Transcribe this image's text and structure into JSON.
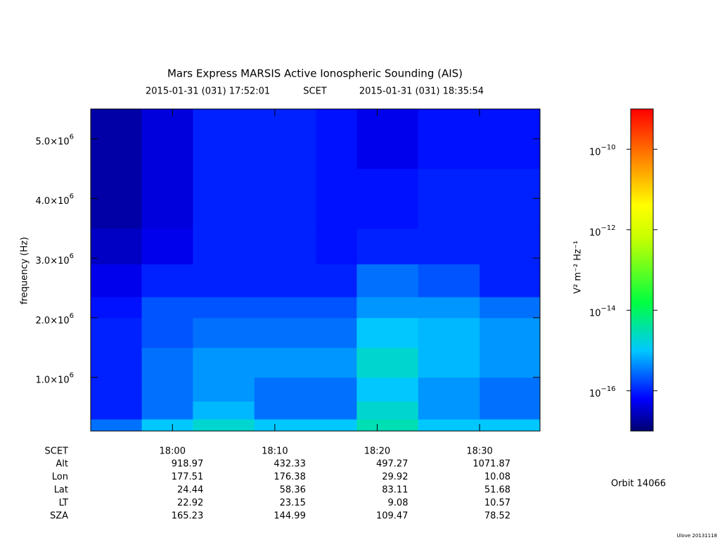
{
  "chart_data": {
    "type": "heatmap",
    "title": "Mars Express MARSIS Active Ionospheric Sounding (AIS)",
    "time_range": [
      "2015-01-31 (031) 17:52:01",
      "2015-01-31 (031) 18:35:54"
    ],
    "time_label": "SCET",
    "y_label": "frequency (Hz)",
    "z_label": "V² m⁻² Hz⁻¹",
    "xlim": [
      "2015-01-31T17:52:01",
      "2015-01-31T18:35:54"
    ],
    "xticks": [
      {
        "value": "2015-01-31T18:00:00",
        "label": "18:00"
      },
      {
        "value": "2015-01-31T18:10:00",
        "label": "18:10"
      },
      {
        "value": "2015-01-31T18:20:00",
        "label": "18:20"
      },
      {
        "value": "2015-01-31T18:30:00",
        "label": "18:30"
      }
    ],
    "ylim": [
      100000,
      5500000
    ],
    "yticks": [
      {
        "value": 1000000,
        "label": "1.0×10",
        "power": "6"
      },
      {
        "value": 2000000,
        "label": "2.0×10",
        "power": "6"
      },
      {
        "value": 3000000,
        "label": "3.0×10",
        "power": "6"
      },
      {
        "value": 4000000,
        "label": "4.0×10",
        "power": "6"
      },
      {
        "value": 5000000,
        "label": "5.0×10",
        "power": "6"
      }
    ],
    "zlim": [
      1e-17,
      1e-09
    ],
    "zscale": "log",
    "zticks": [
      {
        "value": 1e-10,
        "label": "10",
        "power": "−10"
      },
      {
        "value": 1e-12,
        "label": "10",
        "power": "−12"
      },
      {
        "value": 1e-14,
        "label": "10",
        "power": "−14"
      },
      {
        "value": 1e-16,
        "label": "10",
        "power": "−16"
      }
    ],
    "x_bins": [
      "2015-01-31T17:52:01",
      "2015-01-31T17:57:00",
      "2015-01-31T18:02:00",
      "2015-01-31T18:08:00",
      "2015-01-31T18:14:00",
      "2015-01-31T18:18:00",
      "2015-01-31T18:24:00",
      "2015-01-31T18:30:00",
      "2015-01-31T18:35:54"
    ],
    "y_bins": [
      100000,
      300000,
      600000,
      1000000,
      1500000,
      2000000,
      2350000,
      2900000,
      3500000,
      4500000,
      5500000
    ],
    "z": [
      [
        3e-16,
        1e-15,
        2e-15,
        1e-15,
        1e-15,
        3e-15,
        1e-15,
        1e-15
      ],
      [
        1e-16,
        3e-16,
        8e-16,
        3e-16,
        3e-16,
        2e-15,
        5e-16,
        3e-16
      ],
      [
        1e-16,
        3e-16,
        5e-16,
        3e-16,
        3e-16,
        1e-15,
        5e-16,
        3e-16
      ],
      [
        1e-16,
        3e-16,
        5e-16,
        5e-16,
        5e-16,
        2e-15,
        8e-16,
        5e-16
      ],
      [
        1e-16,
        2e-16,
        3e-16,
        3e-16,
        3e-16,
        1e-15,
        8e-16,
        5e-16
      ],
      [
        8e-17,
        2e-16,
        2e-16,
        2e-16,
        2e-16,
        5e-16,
        5e-16,
        3e-16
      ],
      [
        5e-17,
        1e-16,
        1e-16,
        1e-16,
        1e-16,
        3e-16,
        2e-16,
        1e-16
      ],
      [
        3e-17,
        5e-17,
        1e-16,
        1e-16,
        8e-17,
        1e-16,
        1e-16,
        1e-16
      ],
      [
        2e-17,
        4e-17,
        1e-16,
        1e-16,
        8e-17,
        8e-17,
        1e-16,
        1e-16
      ],
      [
        2e-17,
        4e-17,
        1e-16,
        1e-16,
        8e-17,
        5e-17,
        8e-17,
        8e-17
      ]
    ],
    "ephemeris": {
      "header": "SCET",
      "rows": [
        {
          "name": "Alt",
          "values": [
            918.97,
            432.33,
            497.27,
            1071.87
          ]
        },
        {
          "name": "Lon",
          "values": [
            177.51,
            176.38,
            29.92,
            10.08
          ]
        },
        {
          "name": "Lat",
          "values": [
            24.44,
            58.36,
            83.11,
            51.68
          ]
        },
        {
          "name": "LT",
          "values": [
            22.92,
            23.15,
            9.08,
            10.57
          ]
        },
        {
          "name": "SZA",
          "values": [
            165.23,
            144.99,
            109.47,
            78.52
          ]
        }
      ]
    },
    "orbit": "Orbit 14066",
    "footer": "Ulove 20131118"
  }
}
